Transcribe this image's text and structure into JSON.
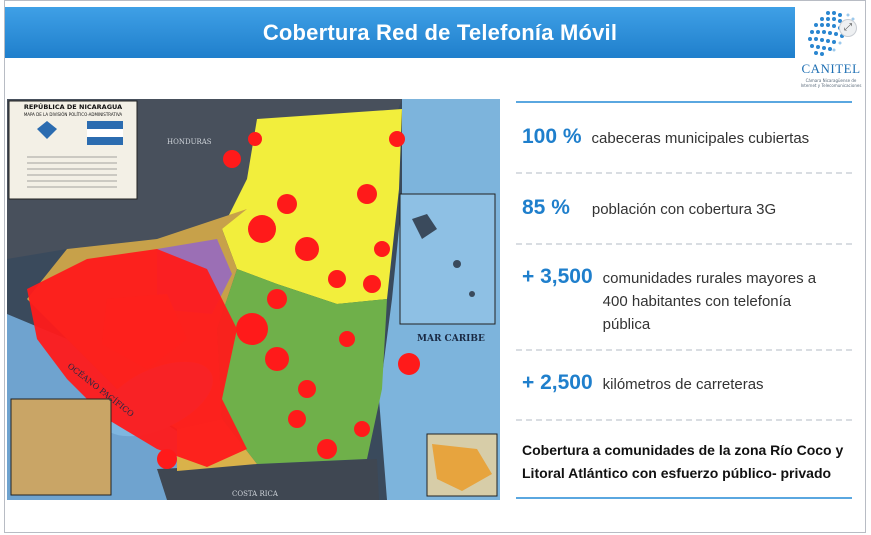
{
  "title": "Cobertura Red de Telefonía Móvil",
  "logo": {
    "name": "CANITEL",
    "tagline": "Cámara Nicaragüense de Internet y Telecomunicaciones"
  },
  "map": {
    "heading": "REPÚBLICA DE NICARAGUA",
    "subheading": "MAPA DE LA DIVISIÓN POLÍTICO-ADMINISTRATIVA",
    "sea_label": "MAR CARIBE",
    "ocean_label": "OCÉANO PACÍFICO",
    "neighbor_north": "HONDURAS",
    "neighbor_south": "COSTA RICA"
  },
  "stats": [
    {
      "value": "100 %",
      "label": "cabeceras municipales cubiertas"
    },
    {
      "value": "85 %",
      "label": "población con cobertura 3G"
    },
    {
      "value": "+ 3,500",
      "label": "comunidades rurales mayores a 400 habitantes con telefonía pública"
    },
    {
      "value": "+ 2,500",
      "label": "kilómetros de carreteras"
    }
  ],
  "note": "Cobertura a comunidades de la zona Río Coco y Litoral Atlántico con esfuerzo público- privado",
  "colors": {
    "accent": "#1f7fcc",
    "coverage_red": "#ff1a1a",
    "region_yellow": "#f2ee3c",
    "region_green": "#6fb04a"
  }
}
